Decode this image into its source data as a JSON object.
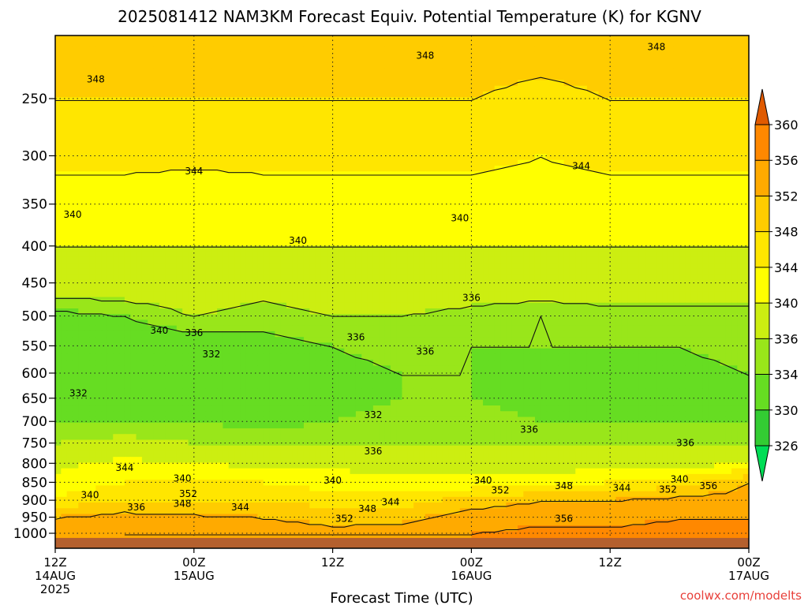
{
  "chart_data": {
    "type": "heatmap",
    "title": "2025081412 NAM3KM Forecast Equiv. Potential Temperature (K) for KGNV",
    "xlabel": "Forecast Time (UTC)",
    "ylabel": "",
    "credit": "coolwx.com/modelts",
    "x_ticks": [
      {
        "hours": 0,
        "label": "12Z",
        "date": "14AUG",
        "year": "2025"
      },
      {
        "hours": 12,
        "label": "00Z",
        "date": "15AUG",
        "year": ""
      },
      {
        "hours": 24,
        "label": "12Z",
        "date": "",
        "year": ""
      },
      {
        "hours": 36,
        "label": "00Z",
        "date": "16AUG",
        "year": ""
      },
      {
        "hours": 48,
        "label": "12Z",
        "date": "",
        "year": ""
      },
      {
        "hours": 60,
        "label": "00Z",
        "date": "17AUG",
        "year": ""
      }
    ],
    "xlim_hours": [
      0,
      60
    ],
    "y_ticks": [
      250,
      300,
      350,
      400,
      450,
      500,
      550,
      600,
      650,
      700,
      750,
      800,
      850,
      900,
      950,
      1000
    ],
    "ylim_hpa": [
      200,
      1030
    ],
    "y_scale": "log-pressure (inverted)",
    "grid": true,
    "colorbar": {
      "levels": [
        326,
        330,
        334,
        336,
        340,
        344,
        348,
        352,
        356,
        360
      ],
      "colors": [
        "#33cc33",
        "#66dd22",
        "#99e61a",
        "#ccee11",
        "#ffff00",
        "#ffe600",
        "#ffcc00",
        "#ffaa00",
        "#ff8800",
        "#ee6600"
      ],
      "top_color": "#e05a00",
      "bottom_color": "#00dd55"
    },
    "thetae_profiles": {
      "pressure": [
        200,
        250,
        300,
        350,
        400,
        450,
        500,
        550,
        600,
        650,
        700,
        750,
        800,
        850,
        900,
        950,
        1000
      ],
      "times_hours": [
        0,
        6,
        12,
        18,
        24,
        30,
        36,
        42,
        48,
        54,
        60
      ],
      "values": [
        [
          350,
          348,
          345,
          342,
          340,
          338,
          333,
          331,
          331,
          332,
          334,
          336,
          339,
          341,
          345,
          352,
          354
        ],
        [
          350,
          348,
          345,
          342,
          340,
          338,
          334,
          331,
          330,
          332,
          334,
          337,
          341,
          344,
          348,
          354,
          356
        ],
        [
          350,
          348,
          345,
          341,
          340,
          338,
          336,
          332,
          331,
          332,
          334,
          336,
          340,
          344,
          348,
          353,
          355
        ],
        [
          350,
          348,
          345,
          342,
          340,
          337,
          335,
          333,
          331,
          331,
          333,
          336,
          339,
          344,
          348,
          352,
          354
        ],
        [
          350,
          348,
          345,
          342,
          340,
          338,
          336,
          334,
          333,
          333,
          334,
          336,
          339,
          342,
          346,
          351,
          353
        ],
        [
          350,
          348,
          345,
          342,
          340,
          338,
          336,
          335,
          334,
          334,
          335,
          336,
          338,
          341,
          346,
          351,
          354
        ],
        [
          350,
          348,
          345,
          342,
          340,
          338,
          335,
          334,
          334,
          334,
          335,
          336,
          338,
          341,
          350,
          354,
          356
        ],
        [
          350,
          347,
          344,
          342,
          340,
          338,
          334,
          334,
          333,
          333,
          334,
          336,
          338,
          342,
          352,
          355,
          357
        ],
        [
          350,
          348,
          345,
          342,
          340,
          338,
          335,
          334,
          334,
          334,
          334,
          336,
          338,
          344,
          352,
          355,
          357
        ],
        [
          350,
          348,
          345,
          342,
          340,
          338,
          335,
          334,
          333,
          333,
          334,
          336,
          338,
          346,
          354,
          356,
          357
        ],
        [
          350,
          348,
          345,
          342,
          340,
          338,
          335,
          335,
          334,
          334,
          334,
          336,
          340,
          352,
          354,
          356,
          357
        ]
      ]
    },
    "contour_labels": [
      {
        "text": "348",
        "hours": 3.5,
        "hpa": 235
      },
      {
        "text": "348",
        "hours": 32,
        "hpa": 218
      },
      {
        "text": "348",
        "hours": 52,
        "hpa": 212
      },
      {
        "text": "344",
        "hours": 12,
        "hpa": 315
      },
      {
        "text": "344",
        "hours": 45.5,
        "hpa": 310
      },
      {
        "text": "340",
        "hours": 1.5,
        "hpa": 362
      },
      {
        "text": "340",
        "hours": 21,
        "hpa": 393
      },
      {
        "text": "340",
        "hours": 35,
        "hpa": 366
      },
      {
        "text": "336",
        "hours": 36,
        "hpa": 472
      },
      {
        "text": "340",
        "hours": 9,
        "hpa": 524
      },
      {
        "text": "336",
        "hours": 12,
        "hpa": 528
      },
      {
        "text": "336",
        "hours": 26,
        "hpa": 535
      },
      {
        "text": "332",
        "hours": 13.5,
        "hpa": 565
      },
      {
        "text": "336",
        "hours": 32,
        "hpa": 560
      },
      {
        "text": "332",
        "hours": 2,
        "hpa": 640
      },
      {
        "text": "332",
        "hours": 27.5,
        "hpa": 686
      },
      {
        "text": "336",
        "hours": 41,
        "hpa": 718
      },
      {
        "text": "336",
        "hours": 54.5,
        "hpa": 750
      },
      {
        "text": "336",
        "hours": 27.5,
        "hpa": 770
      },
      {
        "text": "344",
        "hours": 6,
        "hpa": 812
      },
      {
        "text": "340",
        "hours": 11,
        "hpa": 840
      },
      {
        "text": "340",
        "hours": 24,
        "hpa": 845
      },
      {
        "text": "340",
        "hours": 37,
        "hpa": 845
      },
      {
        "text": "340",
        "hours": 54,
        "hpa": 842
      },
      {
        "text": "340",
        "hours": 3,
        "hpa": 885
      },
      {
        "text": "352",
        "hours": 11.5,
        "hpa": 882
      },
      {
        "text": "348",
        "hours": 11,
        "hpa": 910
      },
      {
        "text": "336",
        "hours": 7,
        "hpa": 920
      },
      {
        "text": "344",
        "hours": 16,
        "hpa": 920
      },
      {
        "text": "344",
        "hours": 29,
        "hpa": 905
      },
      {
        "text": "348",
        "hours": 27,
        "hpa": 925
      },
      {
        "text": "352",
        "hours": 25,
        "hpa": 955
      },
      {
        "text": "352",
        "hours": 38.5,
        "hpa": 872
      },
      {
        "text": "348",
        "hours": 44,
        "hpa": 860
      },
      {
        "text": "344",
        "hours": 49,
        "hpa": 865
      },
      {
        "text": "352",
        "hours": 53,
        "hpa": 870
      },
      {
        "text": "356",
        "hours": 56.5,
        "hpa": 860
      },
      {
        "text": "356",
        "hours": 44,
        "hpa": 955
      }
    ],
    "terrain_color": "#b4602e"
  }
}
